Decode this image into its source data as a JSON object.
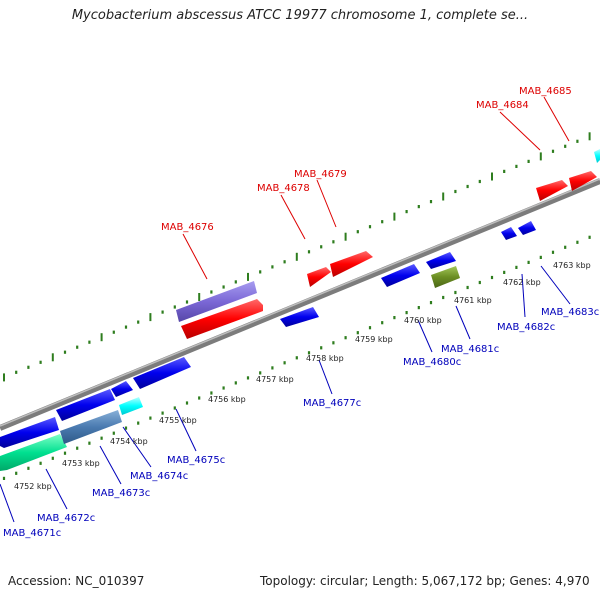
{
  "title": "Mycobacterium abscessus ATCC 19977 chromosome 1, complete se...",
  "footer": {
    "accession": "Accession: NC_010397",
    "summary": "Topology: circular; Length: 5,067,172 bp; Genes: 4,970"
  },
  "colors": {
    "forward_label": "#dd0000",
    "reverse_label": "#0000bb",
    "backbone": "#8a8a8a",
    "tick": "#2e7d1e"
  },
  "scale_labels": [
    "4752 kbp",
    "4753 kbp",
    "4754 kbp",
    "4755 kbp",
    "4756 kbp",
    "4757 kbp",
    "4758 kbp",
    "4759 kbp",
    "4760 kbp",
    "4761 kbp",
    "4762 kbp",
    "4763 kbp"
  ],
  "gene_labels": {
    "forward": [
      "MAB_4676",
      "MAB_4678",
      "MAB_4679",
      "MAB_4684",
      "MAB_4685"
    ],
    "reverse": [
      "MAB_4671c",
      "MAB_4672c",
      "MAB_4673c",
      "MAB_4674c",
      "MAB_4675c",
      "MAB_4677c",
      "MAB_4680c",
      "MAB_4681c",
      "MAB_4682c",
      "MAB_4683c"
    ]
  },
  "features": [
    {
      "strand": "forward",
      "color": "#ff0000"
    },
    {
      "strand": "forward",
      "color": "#7b68d6"
    },
    {
      "strand": "reverse",
      "color": "#0000ee"
    },
    {
      "strand": "reverse",
      "color": "#00ffff"
    },
    {
      "strand": "reverse",
      "color": "#00e090"
    },
    {
      "strand": "reverse",
      "color": "#4a7ab0"
    },
    {
      "strand": "reverse",
      "color": "#6b8e23"
    }
  ]
}
